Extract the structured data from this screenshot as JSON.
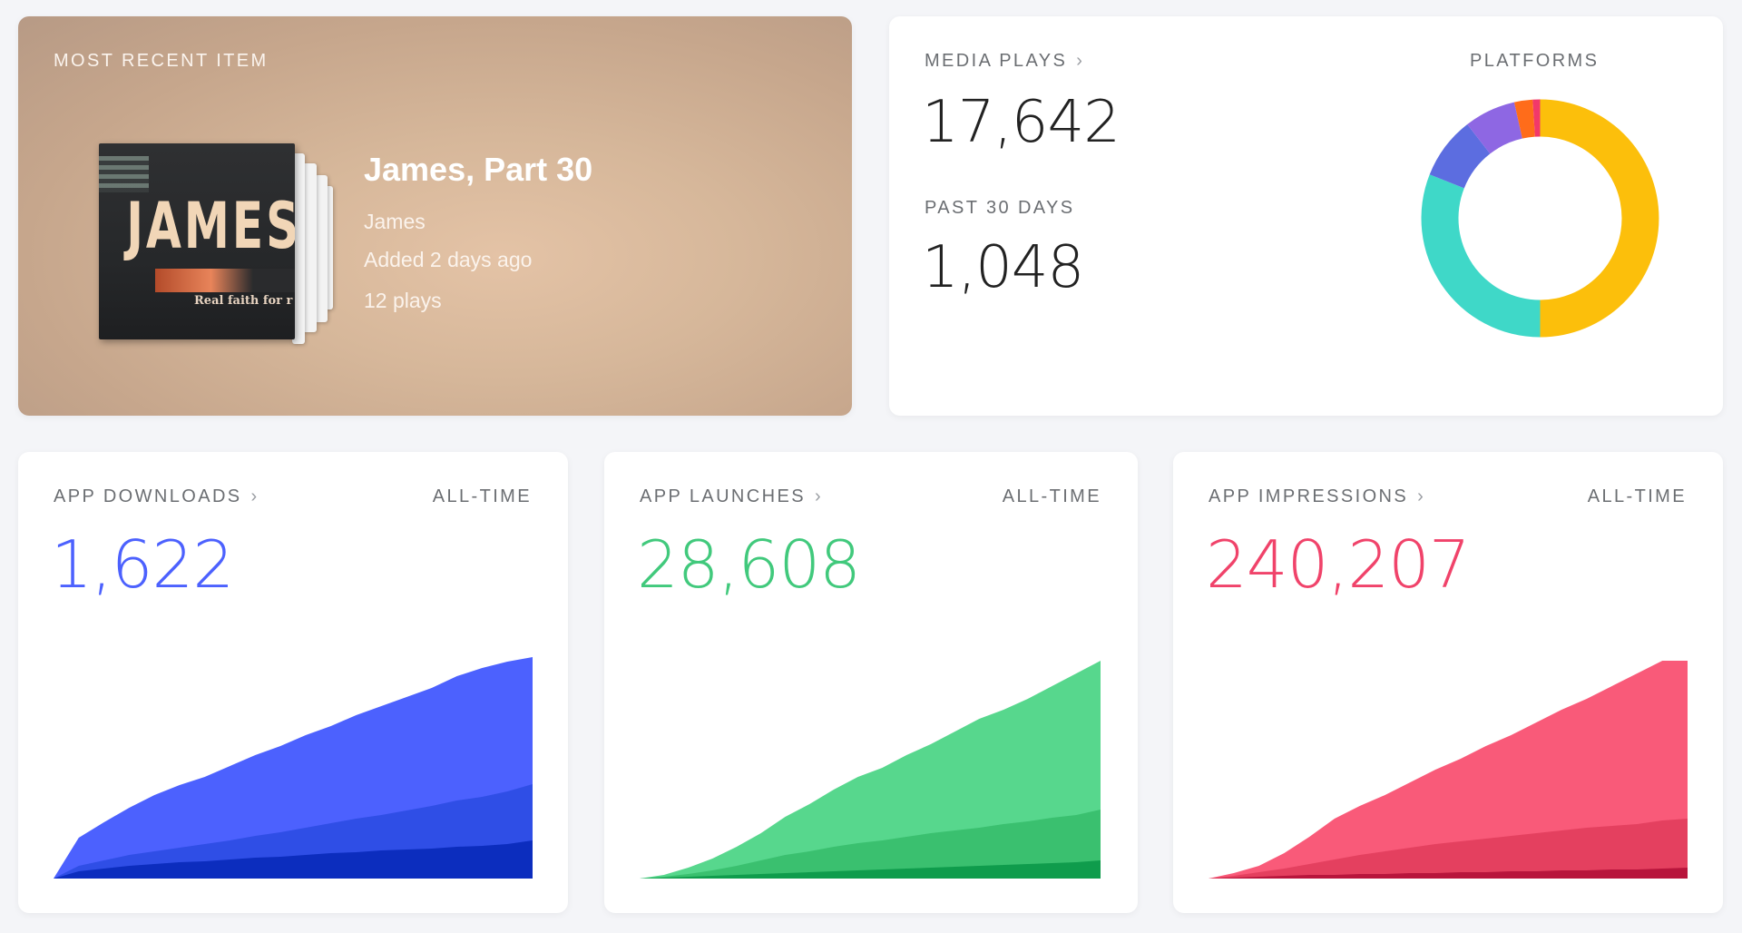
{
  "recent_item": {
    "label": "MOST RECENT ITEM",
    "title": "James, Part 30",
    "series": "James",
    "added": "Added 2 days ago",
    "plays": "12 plays",
    "cover_text": "JAMES",
    "cover_tagline": "Real faith for r"
  },
  "media_plays": {
    "label": "MEDIA PLAYS",
    "total": "17,642",
    "past_label": "PAST 30 DAYS",
    "past_value": "1,048",
    "platforms_label": "PLATFORMS",
    "chevron_icon": "chevron-right-icon"
  },
  "platforms_chart": {
    "type": "pie",
    "values": [
      50,
      31,
      8.5,
      7,
      2.5,
      1
    ],
    "colors": [
      "#fcbf0b",
      "#3fd8c8",
      "#5c6de0",
      "#8e67e3",
      "#ff6c1a",
      "#f2386a"
    ]
  },
  "app_downloads": {
    "label": "APP DOWNLOADS",
    "range": "ALL-TIME",
    "value": "1,622",
    "color": "#4c61fe"
  },
  "app_launches": {
    "label": "APP LAUNCHES",
    "range": "ALL-TIME",
    "value": "28,608",
    "color": "#41c97c"
  },
  "app_impressions": {
    "label": "APP IMPRESSIONS",
    "range": "ALL-TIME",
    "value": "240,207",
    "color": "#f0436a"
  },
  "chart_data": [
    {
      "type": "area",
      "x": [
        0,
        1,
        2,
        3,
        4,
        5,
        6,
        7,
        8,
        9,
        10,
        11,
        12,
        13,
        14,
        15,
        16,
        17,
        18,
        19
      ],
      "series": [
        {
          "values": [
            0,
            45,
            62,
            78,
            92,
            103,
            112,
            124,
            136,
            146,
            158,
            168,
            180,
            190,
            200,
            210,
            223,
            232,
            239,
            244
          ]
        },
        {
          "values": [
            0,
            14,
            20,
            26,
            30,
            34,
            38,
            42,
            47,
            51,
            56,
            61,
            66,
            70,
            75,
            80,
            86,
            90,
            96,
            104
          ]
        },
        {
          "values": [
            0,
            8,
            11,
            14,
            16,
            18,
            19,
            21,
            23,
            24,
            26,
            28,
            29,
            31,
            32,
            33,
            35,
            36,
            38,
            42
          ]
        }
      ],
      "colors": [
        "#4c61fe",
        "#2f4ee6",
        "#0c2dbe"
      ]
    },
    {
      "type": "area",
      "x": [
        0,
        1,
        2,
        3,
        4,
        5,
        6,
        7,
        8,
        9,
        10,
        11,
        12,
        13,
        14,
        15,
        16,
        17,
        18,
        19
      ],
      "series": [
        {
          "values": [
            0,
            4,
            12,
            22,
            35,
            50,
            68,
            82,
            98,
            112,
            122,
            136,
            148,
            162,
            176,
            186,
            198,
            212,
            226,
            240
          ]
        },
        {
          "values": [
            0,
            2,
            5,
            9,
            14,
            20,
            26,
            30,
            35,
            39,
            42,
            46,
            50,
            53,
            56,
            60,
            63,
            67,
            70,
            76
          ]
        },
        {
          "values": [
            0,
            1,
            2,
            3,
            4,
            5,
            6,
            7,
            8,
            9,
            10,
            11,
            12,
            13,
            14,
            15,
            16,
            17,
            18,
            20
          ]
        }
      ],
      "colors": [
        "#57d78d",
        "#3ac06f",
        "#0f9c4c"
      ]
    },
    {
      "type": "area",
      "x": [
        0,
        1,
        2,
        3,
        4,
        5,
        6,
        7,
        8,
        9,
        10,
        11,
        12,
        13,
        14,
        15,
        16,
        17,
        18,
        19
      ],
      "series": [
        {
          "values": [
            0,
            6,
            14,
            28,
            46,
            66,
            80,
            92,
            106,
            120,
            132,
            146,
            158,
            172,
            186,
            198,
            212,
            226,
            240,
            240
          ]
        },
        {
          "values": [
            0,
            3,
            7,
            11,
            16,
            21,
            26,
            30,
            34,
            38,
            41,
            44,
            47,
            50,
            53,
            56,
            58,
            60,
            64,
            66
          ]
        },
        {
          "values": [
            0,
            1,
            2,
            3,
            4,
            4,
            5,
            5,
            6,
            6,
            7,
            7,
            8,
            8,
            9,
            9,
            10,
            10,
            11,
            12
          ]
        }
      ],
      "colors": [
        "#f95a79",
        "#e4405f",
        "#b8153c"
      ]
    }
  ]
}
